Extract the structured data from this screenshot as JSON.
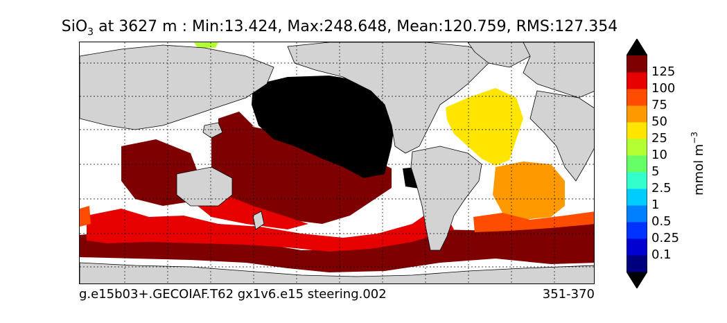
{
  "figure": {
    "title_main": "SiO",
    "title_sub": "3",
    "title_rest": " at 3627 m : Min:13.424, Max:248.648, Mean:120.759, RMS:127.354",
    "footer_left": "g.e15b03+.GECOIAF.T62 gx1v6.e15 steering.002",
    "footer_right": "351-370"
  },
  "colorbar": {
    "units_main": "mmol m",
    "units_sup": "−3",
    "levels": [
      "0.1",
      "0.25",
      "0.5",
      "1",
      "2.5",
      "5",
      "10",
      "25",
      "50",
      "75",
      "100",
      "125"
    ],
    "colors": [
      "#00007f",
      "#0000d0",
      "#0033ff",
      "#0080ff",
      "#00ccff",
      "#33ffcc",
      "#66ff66",
      "#b3ff33",
      "#ffe500",
      "#ff9900",
      "#ff4d00",
      "#e60000",
      "#7f0000"
    ],
    "extend": "both"
  },
  "map_colors": {
    "land": "#d3d3d3",
    "missing": "#ffffff",
    "above_max": "#000000"
  }
}
